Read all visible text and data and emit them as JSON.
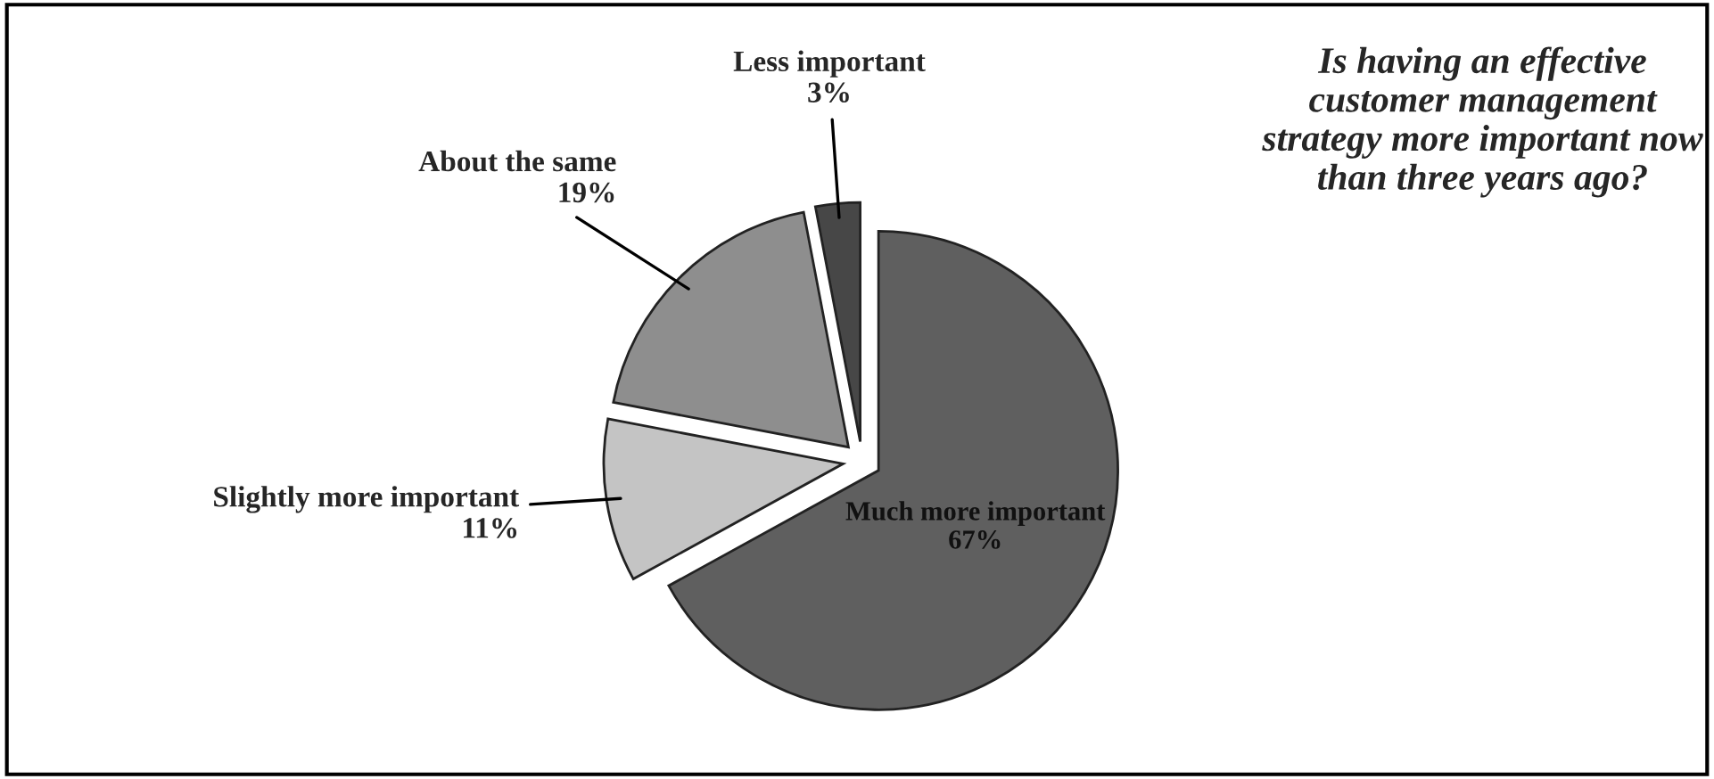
{
  "chart_data": {
    "type": "pie",
    "title": "Is having an effective customer management strategy more important now than three years ago?",
    "categories": [
      "Much more important",
      "Slightly more important",
      "About the same",
      "Less important"
    ],
    "values": [
      67,
      11,
      19,
      3
    ],
    "colors": [
      "#5f5f5f",
      "#c4c4c4",
      "#8e8e8e",
      "#474747"
    ],
    "value_labels": [
      "67%",
      "11%",
      "19%",
      "3%"
    ],
    "legend": false
  }
}
